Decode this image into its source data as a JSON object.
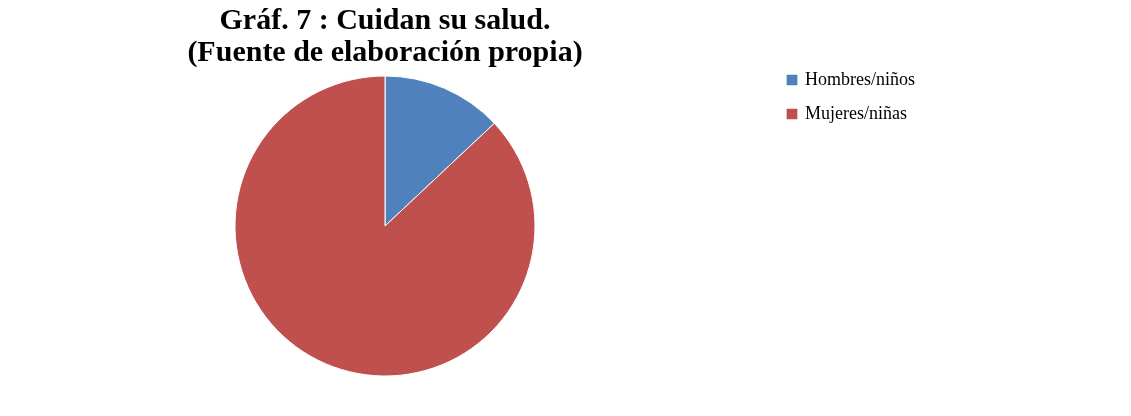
{
  "chart_data": {
    "type": "pie",
    "title": "Gráf. 7 : Cuidan su salud.\n(Fuente de elaboración propia)",
    "categories": [
      "Hombres/niños",
      "Mujeres/niñas"
    ],
    "values": [
      13,
      87
    ],
    "colors": [
      "#4f81bd",
      "#c0504d"
    ],
    "legend": "right"
  }
}
